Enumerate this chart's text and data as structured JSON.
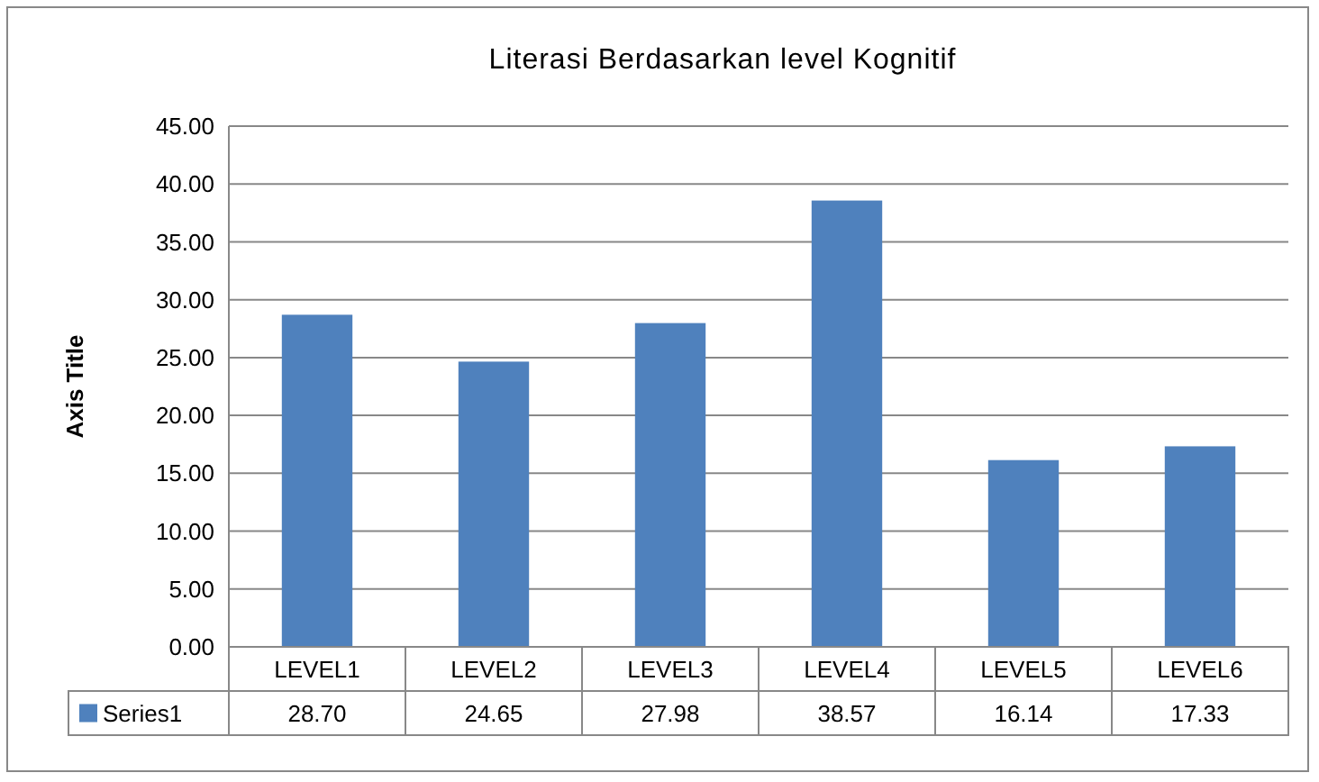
{
  "chart_data": {
    "type": "bar",
    "title": "Literasi Berdasarkan level Kognitif",
    "ylabel": "Axis Title",
    "categories": [
      "LEVEL1",
      "LEVEL2",
      "LEVEL3",
      "LEVEL4",
      "LEVEL5",
      "LEVEL6"
    ],
    "series": [
      {
        "name": "Series1",
        "color": "#4f81bd",
        "values": [
          28.7,
          24.65,
          27.98,
          38.57,
          16.14,
          17.33
        ],
        "value_labels": [
          "28.70",
          "24.65",
          "27.98",
          "38.57",
          "16.14",
          "17.33"
        ]
      }
    ],
    "ylim": [
      0,
      45
    ],
    "yticks": [
      {
        "value": 0,
        "label": "0.00"
      },
      {
        "value": 5,
        "label": "5.00"
      },
      {
        "value": 10,
        "label": "10.00"
      },
      {
        "value": 15,
        "label": "15.00"
      },
      {
        "value": 20,
        "label": "20.00"
      },
      {
        "value": 25,
        "label": "25.00"
      },
      {
        "value": 30,
        "label": "30.00"
      },
      {
        "value": 35,
        "label": "35.00"
      },
      {
        "value": 40,
        "label": "40.00"
      },
      {
        "value": 45,
        "label": "45.00"
      }
    ],
    "grid": "y",
    "legend": "bottom"
  }
}
